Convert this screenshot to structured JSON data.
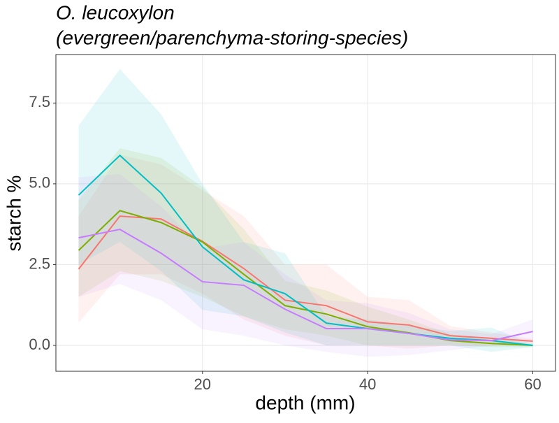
{
  "chart_data": {
    "type": "line",
    "title": [
      "O. leucoxylon",
      "(evergreen/parenchyma-storing-species)"
    ],
    "x_label": "depth (mm)",
    "y_label": "starch %",
    "x": [
      5,
      10,
      15,
      20,
      25,
      30,
      35,
      40,
      45,
      50,
      55,
      60
    ],
    "series": [
      {
        "color": "#F8766D",
        "values": [
          2.36,
          4.0,
          3.91,
          3.22,
          2.38,
          1.4,
          1.23,
          0.73,
          0.63,
          0.3,
          0.22,
          0.13
        ],
        "upper": [
          4.0,
          5.9,
          5.6,
          4.8,
          4.0,
          2.5,
          2.5,
          1.5,
          1.4,
          0.6,
          0.4,
          0.2
        ],
        "lower": [
          0.7,
          2.2,
          2.2,
          1.6,
          0.8,
          0.3,
          0.0,
          0.0,
          -0.1,
          0.0,
          0.0,
          0.05
        ]
      },
      {
        "color": "#7CAE00",
        "values": [
          2.94,
          4.17,
          3.8,
          3.2,
          2.2,
          1.23,
          0.97,
          0.58,
          0.39,
          0.15,
          0.06,
          0.0
        ],
        "upper": [
          4.5,
          6.1,
          5.8,
          4.9,
          3.6,
          2.0,
          1.7,
          1.2,
          0.8,
          0.35,
          0.2,
          0.05
        ],
        "lower": [
          1.5,
          2.3,
          2.0,
          1.5,
          0.9,
          0.5,
          0.3,
          0.0,
          0.0,
          0.0,
          -0.05,
          -0.05
        ]
      },
      {
        "color": "#00BFC4",
        "values": [
          4.65,
          5.88,
          4.71,
          3.05,
          2.03,
          1.6,
          0.69,
          0.52,
          0.37,
          0.22,
          0.15,
          0.0
        ],
        "upper": [
          6.8,
          8.55,
          7.15,
          5.0,
          3.2,
          2.85,
          0.9,
          0.8,
          0.6,
          0.45,
          0.55,
          0.05
        ],
        "lower": [
          2.5,
          3.2,
          2.3,
          1.1,
          0.9,
          0.4,
          0.0,
          0.0,
          0.0,
          0.0,
          -0.2,
          -0.05
        ]
      },
      {
        "color": "#C77CFF",
        "values": [
          3.33,
          3.59,
          2.85,
          1.97,
          1.86,
          1.12,
          0.52,
          0.52,
          0.37,
          0.17,
          0.15,
          0.43
        ],
        "upper": [
          5.2,
          5.3,
          4.3,
          3.0,
          3.2,
          2.2,
          1.4,
          1.3,
          1.0,
          0.5,
          0.35,
          0.8
        ],
        "lower": [
          1.5,
          1.9,
          1.4,
          0.5,
          0.3,
          0.0,
          -0.2,
          -0.35,
          -0.3,
          -0.15,
          0.0,
          0.1
        ]
      }
    ],
    "band_opacity": 0.1,
    "xlim": [
      2.25,
      62.75
    ],
    "ylim": [
      -0.8,
      9.0
    ],
    "xticks": [
      20,
      40,
      60
    ],
    "yticks": [
      {
        "value": 0,
        "label": "0.0"
      },
      2.5,
      {
        "value": 5,
        "label": "5.0"
      },
      7.5
    ],
    "grid": true
  }
}
